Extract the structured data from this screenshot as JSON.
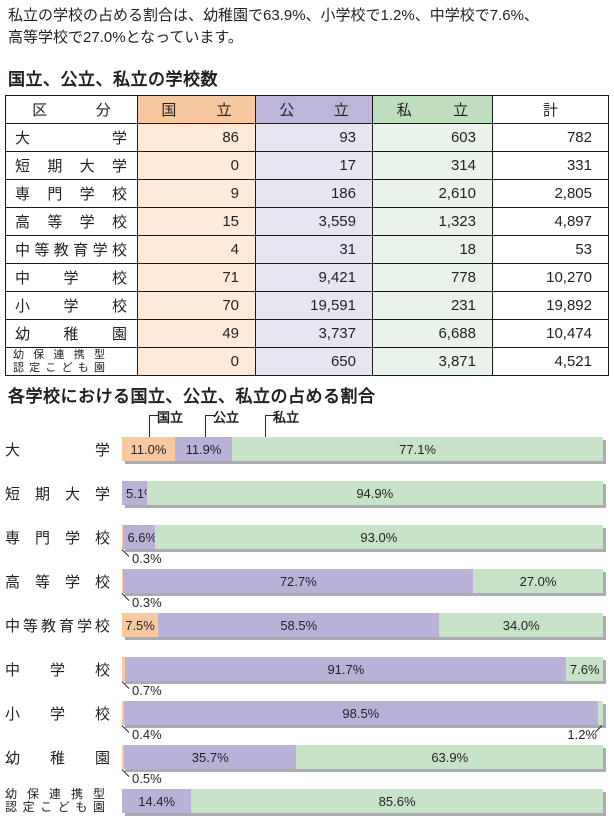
{
  "intro": {
    "line1": "私立の学校の占める割合は、幼稚園で63.9%、小学校で1.2%、中学校で7.6%、",
    "line2": "高等学校で27.0%となっています。"
  },
  "table_section": {
    "title": "国立、公立、私立の学校数",
    "columns": [
      "区分",
      "国立",
      "公立",
      "私立",
      "計"
    ],
    "rows": [
      {
        "label": [
          "大学"
        ],
        "values": [
          "86",
          "93",
          "603",
          "782"
        ]
      },
      {
        "label": [
          "短期大学"
        ],
        "values": [
          "0",
          "17",
          "314",
          "331"
        ]
      },
      {
        "label": [
          "専門学校"
        ],
        "values": [
          "9",
          "186",
          "2,610",
          "2,805"
        ]
      },
      {
        "label": [
          "高等学校"
        ],
        "values": [
          "15",
          "3,559",
          "1,323",
          "4,897"
        ]
      },
      {
        "label": [
          "中等教育学校"
        ],
        "values": [
          "4",
          "31",
          "18",
          "53"
        ]
      },
      {
        "label": [
          "中学校"
        ],
        "values": [
          "71",
          "9,421",
          "778",
          "10,270"
        ]
      },
      {
        "label": [
          "小学校"
        ],
        "values": [
          "70",
          "19,591",
          "231",
          "19,892"
        ]
      },
      {
        "label": [
          "幼稚園"
        ],
        "values": [
          "49",
          "3,737",
          "6,688",
          "10,474"
        ]
      },
      {
        "label": [
          "幼保連携型",
          "認定こども園"
        ],
        "values": [
          "0",
          "650",
          "3,871",
          "4,521"
        ]
      }
    ]
  },
  "chart_section": {
    "title": "各学校における国立、公立、私立の占める割合"
  },
  "chart_data": {
    "type": "bar",
    "orientation": "horizontal-stacked",
    "unit": "%",
    "title": "各学校における国立、公立、私立の占める割合",
    "categories": [
      "大学",
      "短期大学",
      "専門学校",
      "高等学校",
      "中等教育学校",
      "中学校",
      "小学校",
      "幼稚園",
      "幼保連携型認定こども園"
    ],
    "category_label_lines": [
      [
        "大学"
      ],
      [
        "短期大学"
      ],
      [
        "専門学校"
      ],
      [
        "高等学校"
      ],
      [
        "中等教育学校"
      ],
      [
        "中学校"
      ],
      [
        "小学校"
      ],
      [
        "幼稚園"
      ],
      [
        "幼保連携型",
        "認定こども園"
      ]
    ],
    "series": [
      {
        "name": "国立",
        "color": "#f8c9a1",
        "values": [
          11.0,
          0,
          0.3,
          0.3,
          7.5,
          0.7,
          0.4,
          0.5,
          0
        ]
      },
      {
        "name": "公立",
        "color": "#b9b1d7",
        "values": [
          11.9,
          5.1,
          6.6,
          72.7,
          58.5,
          91.7,
          98.5,
          35.7,
          14.4
        ]
      },
      {
        "name": "私立",
        "color": "#c6e3c7",
        "values": [
          77.1,
          94.9,
          93.0,
          27.0,
          34.0,
          7.6,
          1.2,
          63.9,
          85.6
        ]
      }
    ],
    "xlim": [
      0,
      100
    ],
    "grid": false,
    "legend_position": "top",
    "value_label_format": "0.0%"
  },
  "colors": {
    "kokuritsu_header": "#f6c8a0",
    "koritsu_header": "#beb6da",
    "shiritsu_header": "#bedfbe",
    "kokuritsu_cell": "#fdeadb",
    "koritsu_cell": "#e8e5f3",
    "shiritsu_cell": "#e9f3e9",
    "bar_shadow": "#a9abae",
    "text": "#231f20"
  }
}
